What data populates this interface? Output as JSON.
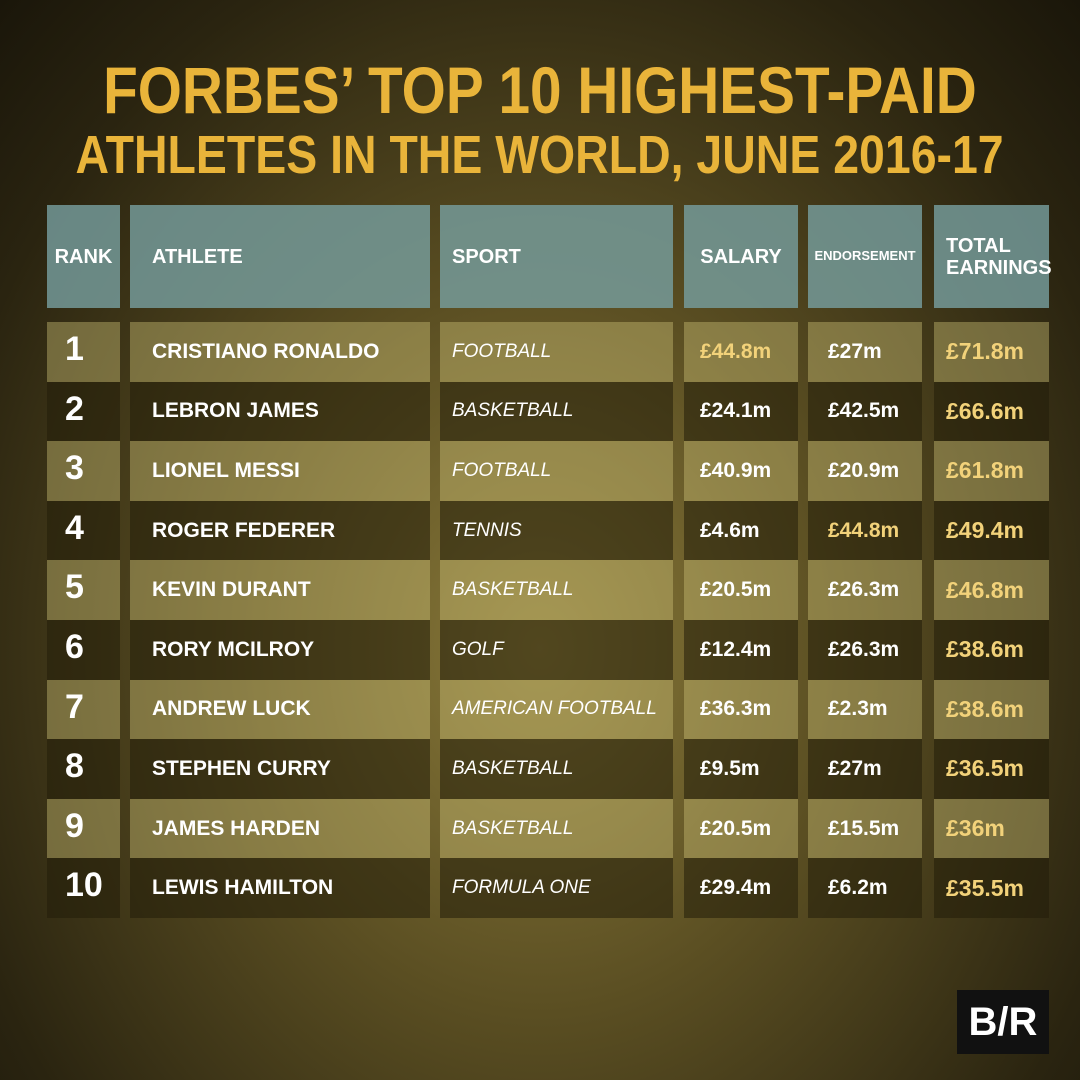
{
  "title": {
    "line1": "FORBES’ TOP 10 HIGHEST-PAID",
    "line2": "ATHLETES IN THE WORLD, JUNE 2016-17"
  },
  "table": {
    "header": [
      "RANK",
      "ATHLETE",
      "SPORT",
      "SALARY",
      "ENDORSEMENT",
      "TOTAL EARNINGS"
    ],
    "rows": [
      [
        1,
        "CRISTIANO RONALDO",
        "FOOTBALL",
        "£44.8m",
        "£27m",
        "£71.8m"
      ],
      [
        2,
        "LEBRON JAMES",
        "BASKETBALL",
        "£24.1m",
        "£42.5m",
        "£66.6m"
      ],
      [
        3,
        "LIONEL MESSI",
        "FOOTBALL",
        "£40.9m",
        "£20.9m",
        "£61.8m"
      ],
      [
        4,
        "ROGER FEDERER",
        "TENNIS",
        "£4.6m",
        "£44.8m",
        "£49.4m"
      ],
      [
        5,
        "KEVIN DURANT",
        "BASKETBALL",
        "£20.5m",
        "£26.3m",
        "£46.8m"
      ],
      [
        6,
        "RORY MCILROY",
        "GOLF",
        "£12.4m",
        "£26.3m",
        "£38.6m"
      ],
      [
        7,
        "ANDREW LUCK",
        "AMERICAN FOOTBALL",
        "£36.3m",
        "£2.3m",
        "£38.6m"
      ],
      [
        8,
        "STEPHEN CURRY",
        "BASKETBALL",
        "£9.5m",
        "£27m",
        "£36.5m"
      ],
      [
        9,
        "JAMES HARDEN",
        "BASKETBALL",
        "£20.5m",
        "£15.5m",
        "£36m"
      ],
      [
        10,
        "LEWIS HAMILTON",
        "FORMULA ONE",
        "£29.4m",
        "£6.2m",
        "£35.5m"
      ]
    ]
  },
  "logo": "B/R"
}
